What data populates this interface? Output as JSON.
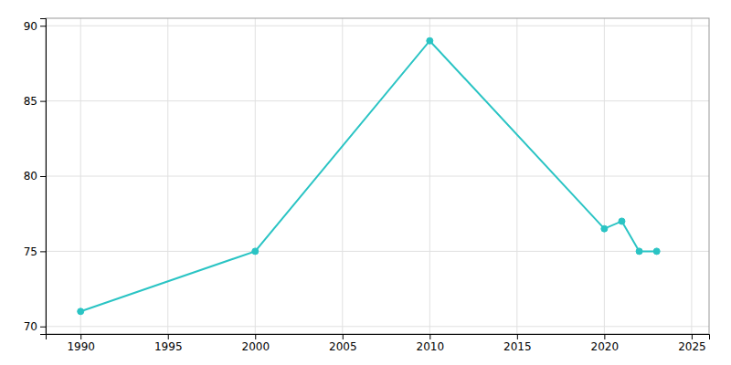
{
  "chart_data": {
    "type": "line",
    "x": [
      1990,
      2000,
      2010,
      2020,
      2021,
      2022,
      2023
    ],
    "values": [
      71,
      75,
      89,
      76.5,
      77,
      75,
      75
    ],
    "color": "#2ac4c4",
    "marker": "circle",
    "xlim": [
      1988,
      2026
    ],
    "ylim": [
      69.5,
      90.5
    ],
    "xticks": [
      1990,
      1995,
      2000,
      2005,
      2010,
      2015,
      2020,
      2025
    ],
    "yticks": [
      70,
      75,
      80,
      85,
      90
    ],
    "grid": true
  }
}
